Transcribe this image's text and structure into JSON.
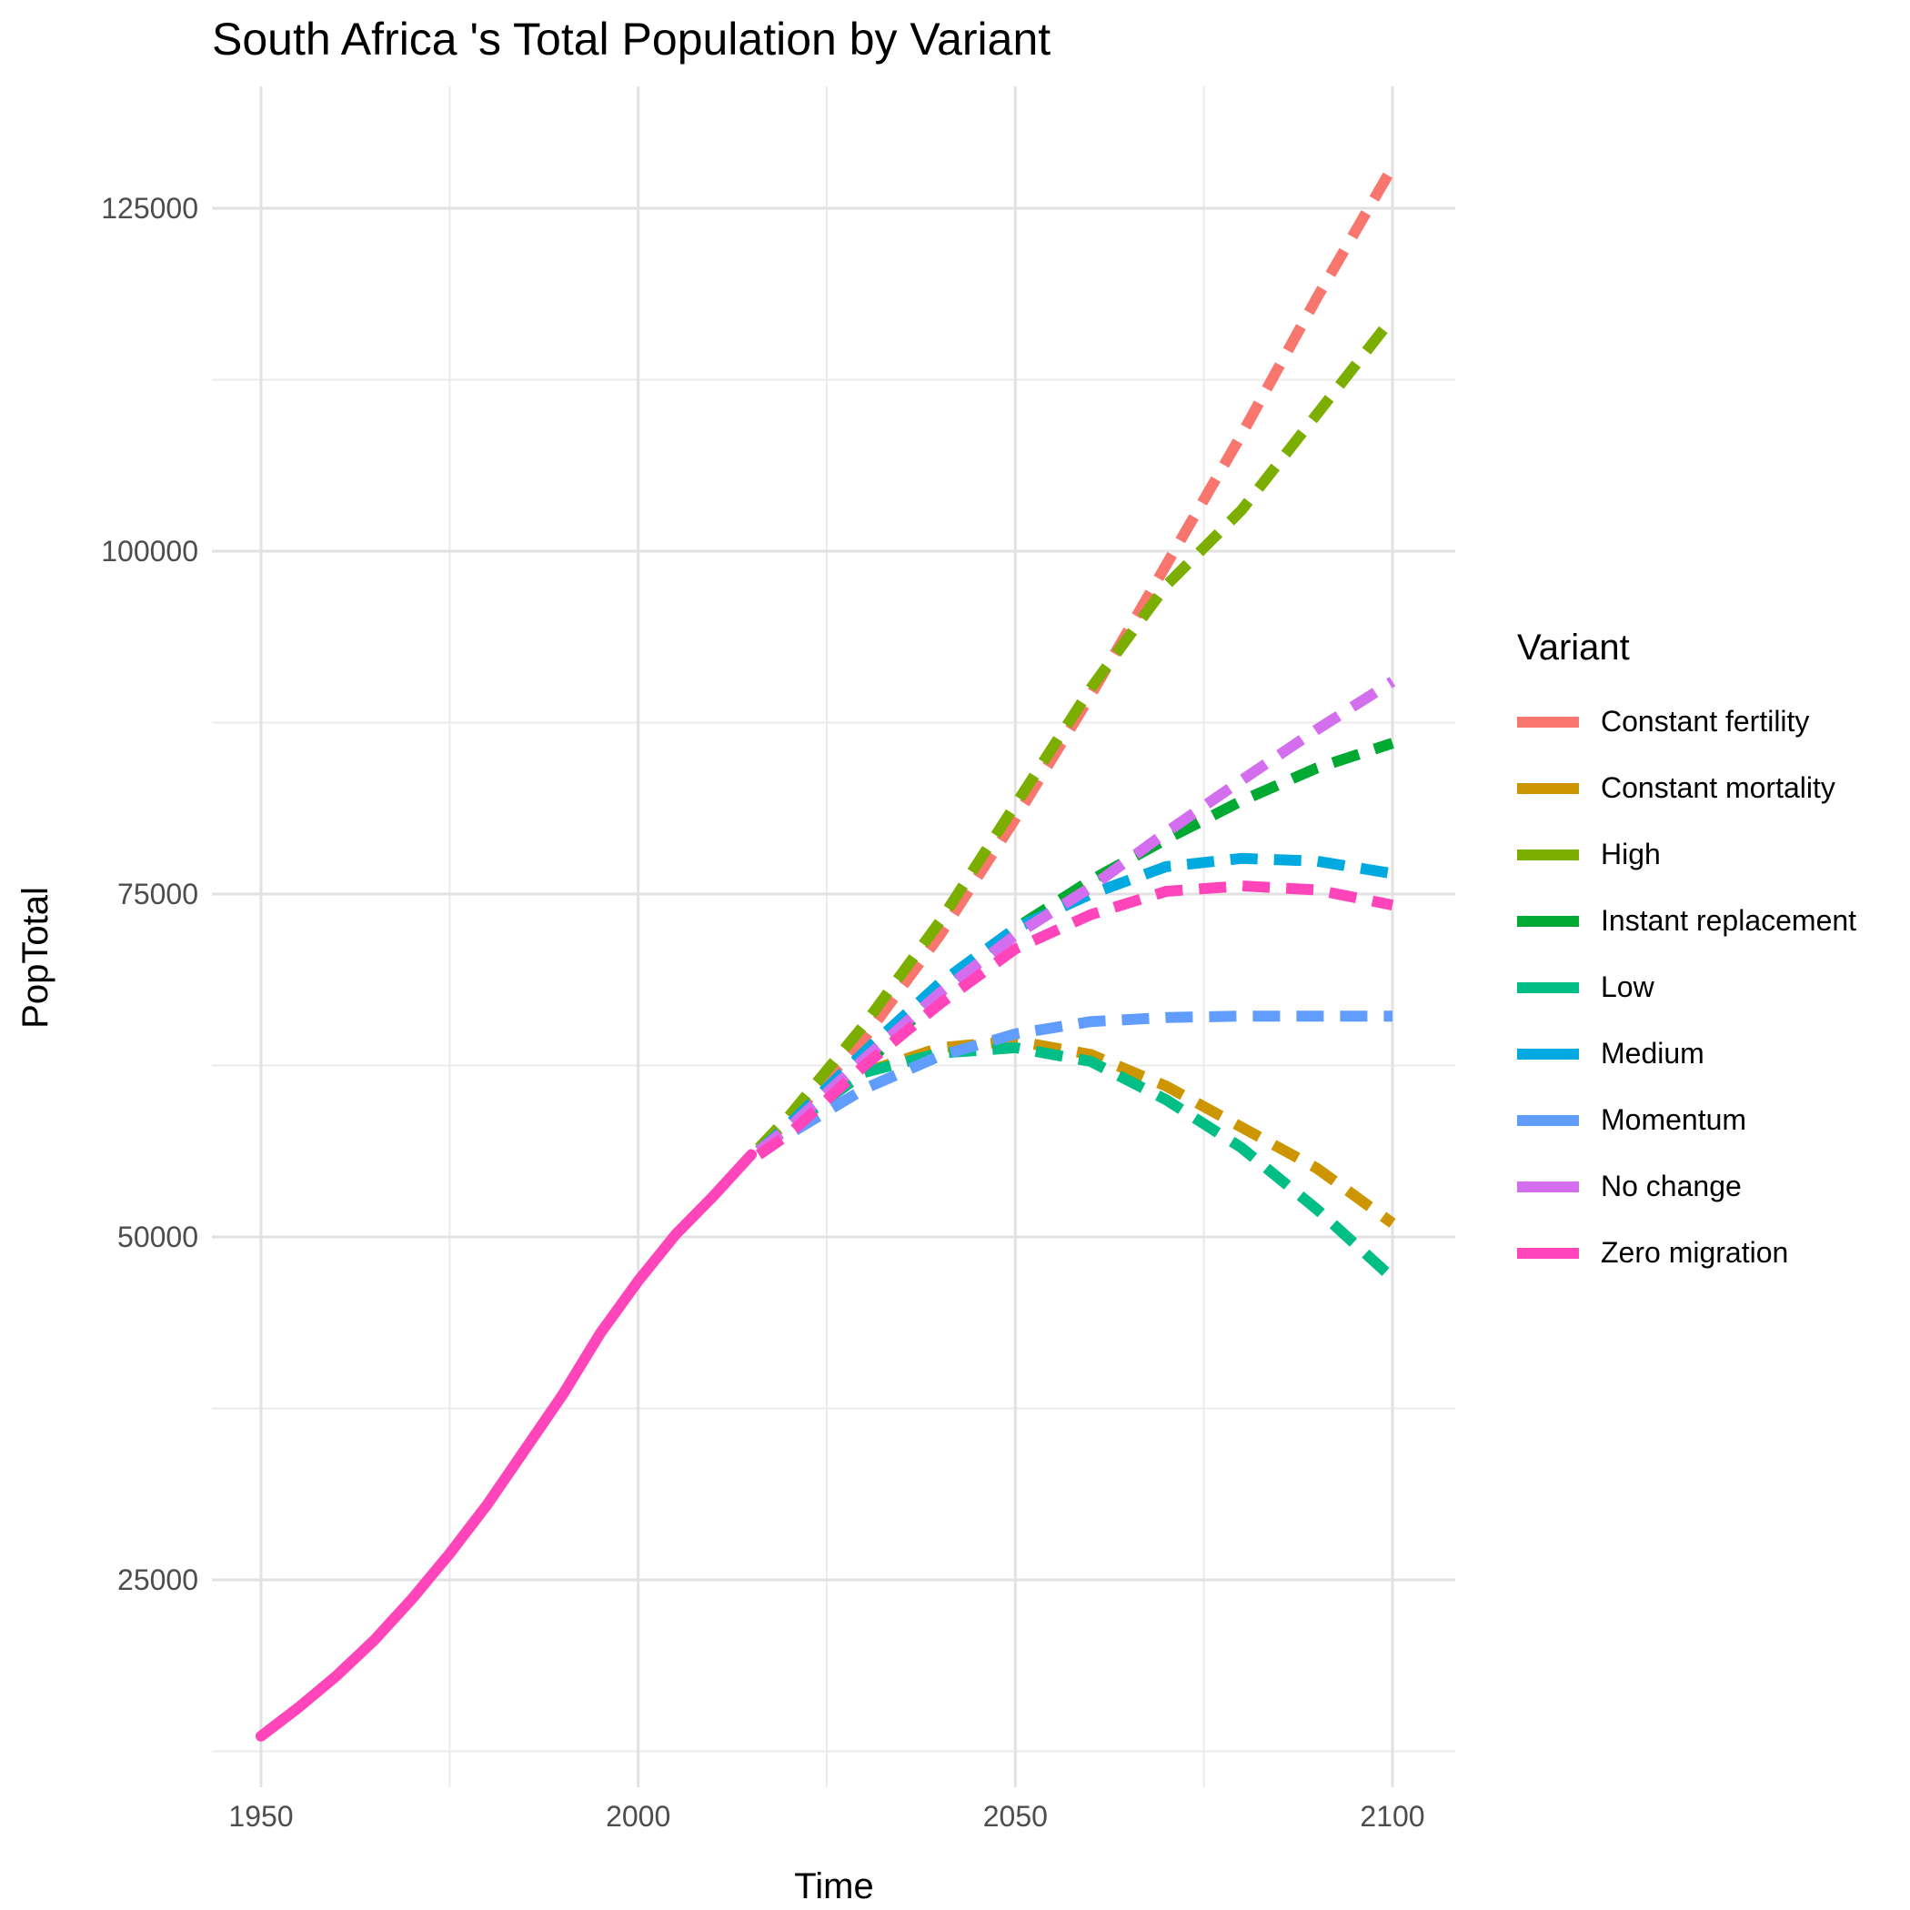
{
  "chart_data": {
    "type": "line",
    "title": "South Africa 's Total Population by Variant",
    "xlabel": "Time",
    "ylabel": "PopTotal",
    "xlim": [
      1950,
      2100
    ],
    "ylim": [
      13000,
      130000
    ],
    "xticks": [
      1950,
      2000,
      2050,
      2100
    ],
    "yticks": [
      25000,
      50000,
      75000,
      100000,
      125000
    ],
    "grid": true,
    "legend_title": "Variant",
    "legend_position": "right",
    "history": {
      "name": "Zero migration",
      "x": [
        1950,
        1955,
        1960,
        1965,
        1970,
        1975,
        1980,
        1985,
        1990,
        1995,
        2000,
        2005,
        2010,
        2015
      ],
      "y": [
        13600,
        15700,
        18000,
        20600,
        23600,
        26900,
        30500,
        34500,
        38500,
        43000,
        46800,
        50200,
        53000,
        56000
      ]
    },
    "series": [
      {
        "name": "Constant fertility",
        "color": "#F8766D",
        "x": [
          2016,
          2020,
          2030,
          2040,
          2050,
          2060,
          2070,
          2080,
          2090,
          2100
        ],
        "y": [
          56500,
          58500,
          64500,
          72000,
          80500,
          89500,
          99000,
          108500,
          118500,
          128000
        ]
      },
      {
        "name": "Constant mortality",
        "color": "#CD9600",
        "x": [
          2016,
          2020,
          2030,
          2040,
          2050,
          2060,
          2070,
          2080,
          2090,
          2100
        ],
        "y": [
          56300,
          58200,
          62000,
          63800,
          64300,
          63300,
          61000,
          58000,
          55000,
          51000
        ]
      },
      {
        "name": "High",
        "color": "#7CAE00",
        "x": [
          2016,
          2020,
          2030,
          2040,
          2050,
          2060,
          2070,
          2080,
          2090,
          2100
        ],
        "y": [
          56500,
          58800,
          65500,
          73000,
          81500,
          90000,
          97500,
          103000,
          110000,
          117000
        ]
      },
      {
        "name": "Instant replacement",
        "color": "#00A932",
        "x": [
          2016,
          2020,
          2030,
          2040,
          2050,
          2060,
          2070,
          2080,
          2090,
          2100
        ],
        "y": [
          56300,
          58000,
          62500,
          67800,
          72500,
          76000,
          79000,
          81800,
          84200,
          86000
        ]
      },
      {
        "name": "Low",
        "color": "#00BE86",
        "x": [
          2016,
          2020,
          2030,
          2040,
          2050,
          2060,
          2070,
          2080,
          2090,
          2100
        ],
        "y": [
          56300,
          58000,
          62000,
          63400,
          63800,
          62800,
          60000,
          56500,
          52000,
          47000
        ]
      },
      {
        "name": "Medium",
        "color": "#00A9DF",
        "x": [
          2016,
          2020,
          2030,
          2040,
          2050,
          2060,
          2070,
          2080,
          2090,
          2100
        ],
        "y": [
          56300,
          58200,
          63500,
          68500,
          72500,
          75000,
          77000,
          77600,
          77400,
          76500
        ]
      },
      {
        "name": "Momentum",
        "color": "#619CFF",
        "x": [
          2016,
          2020,
          2030,
          2040,
          2050,
          2060,
          2070,
          2080,
          2090,
          2100
        ],
        "y": [
          56000,
          57500,
          60800,
          63200,
          64800,
          65700,
          66000,
          66100,
          66100,
          66100
        ]
      },
      {
        "name": "No change",
        "color": "#D36EEF",
        "x": [
          2016,
          2020,
          2030,
          2040,
          2050,
          2060,
          2070,
          2080,
          2090,
          2100
        ],
        "y": [
          56300,
          58000,
          63000,
          67800,
          72000,
          75500,
          79500,
          83300,
          87000,
          90500
        ]
      },
      {
        "name": "Zero migration",
        "color": "#FF45B9",
        "x": [
          2016,
          2020,
          2030,
          2040,
          2050,
          2060,
          2070,
          2080,
          2090,
          2100
        ],
        "y": [
          56000,
          57500,
          62500,
          67000,
          71000,
          73500,
          75200,
          75600,
          75300,
          74200
        ]
      }
    ]
  }
}
